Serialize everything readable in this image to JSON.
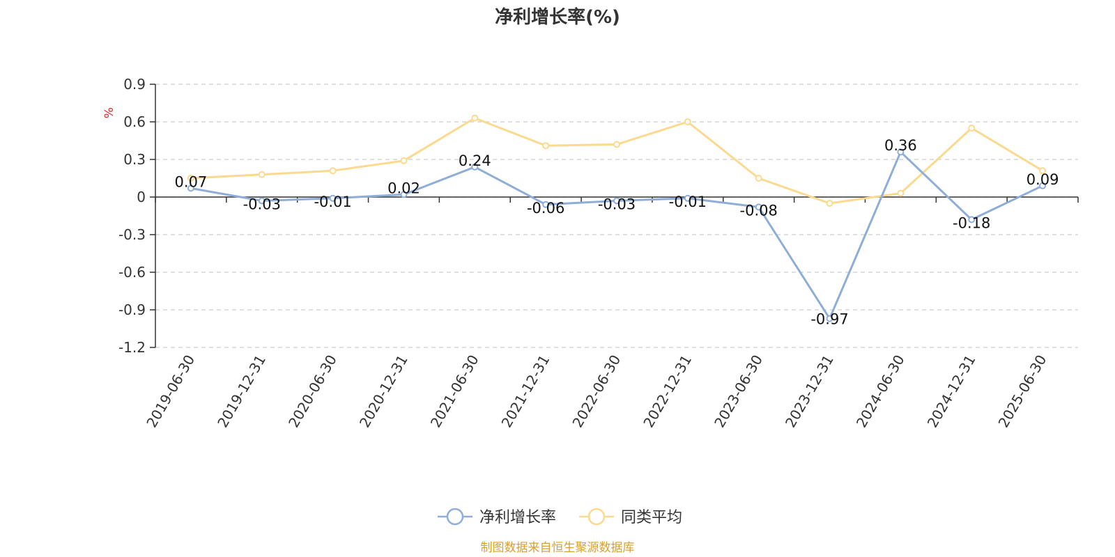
{
  "chart_data": {
    "type": "line",
    "title": "净利增长率(%)",
    "ylabel": "%",
    "xlabel": "",
    "categories": [
      "2019-06-30",
      "2019-12-31",
      "2020-06-30",
      "2020-12-31",
      "2021-06-30",
      "2021-12-31",
      "2022-06-30",
      "2022-12-31",
      "2023-06-30",
      "2023-12-31",
      "2024-06-30",
      "2024-12-31",
      "2025-06-30"
    ],
    "ylim": [
      -1.2,
      0.9
    ],
    "yticks": [
      "0.9",
      "0.6",
      "0.3",
      "0",
      "-0.3",
      "-0.6",
      "-0.9",
      "-1.2"
    ],
    "grid": true,
    "legend_position": "bottom",
    "series": [
      {
        "name": "净利增长率",
        "color": "#8eaed8",
        "values": [
          0.07,
          -0.03,
          -0.01,
          0.02,
          0.24,
          -0.06,
          -0.03,
          -0.01,
          -0.08,
          -0.97,
          0.36,
          -0.18,
          0.09
        ],
        "labels": [
          "0.07",
          "-0.03",
          "-0.01",
          "0.02",
          "0.24",
          "-0.06",
          "-0.03",
          "-0.01",
          "-0.08",
          "-0.97",
          "0.36",
          "-0.18",
          "0.09"
        ]
      },
      {
        "name": "同类平均",
        "color": "#fbd98e",
        "values": [
          0.15,
          0.18,
          0.21,
          0.29,
          0.63,
          0.41,
          0.42,
          0.6,
          0.15,
          -0.05,
          0.03,
          0.55,
          0.21
        ]
      }
    ]
  },
  "source": "制图数据来自恒生聚源数据库"
}
